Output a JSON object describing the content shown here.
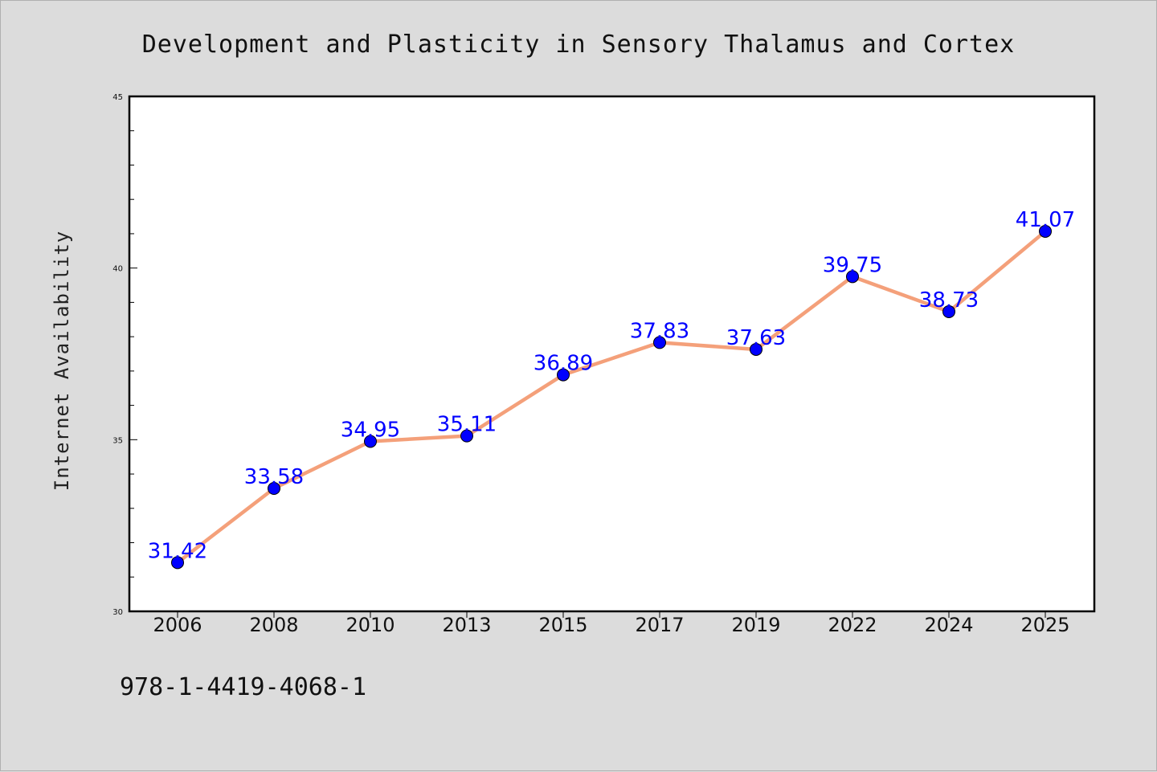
{
  "page": {
    "footer_text": "978-1-4419-4068-1"
  },
  "chart_data": {
    "type": "line",
    "title": "Development and Plasticity in Sensory Thalamus and Cortex",
    "xlabel": "",
    "ylabel": "Internet Availability",
    "categories": [
      "2006",
      "2008",
      "2010",
      "2013",
      "2015",
      "2017",
      "2019",
      "2022",
      "2024",
      "2025"
    ],
    "series": [
      {
        "values": [
          31.42,
          33.58,
          34.95,
          35.11,
          36.89,
          37.83,
          37.63,
          39.75,
          38.73,
          41.07
        ],
        "labels": [
          "31.42",
          "33.58",
          "34.95",
          "35.11",
          "36.89",
          "37.83",
          "37.63",
          "39.75",
          "38.73",
          "41.07"
        ],
        "line_color": "#f4a07a",
        "marker_color": "#0000ff"
      }
    ],
    "ylim": [
      30,
      45
    ],
    "yticks": [
      "30",
      "35",
      "40",
      "45"
    ],
    "grid": false,
    "legend": "none"
  }
}
